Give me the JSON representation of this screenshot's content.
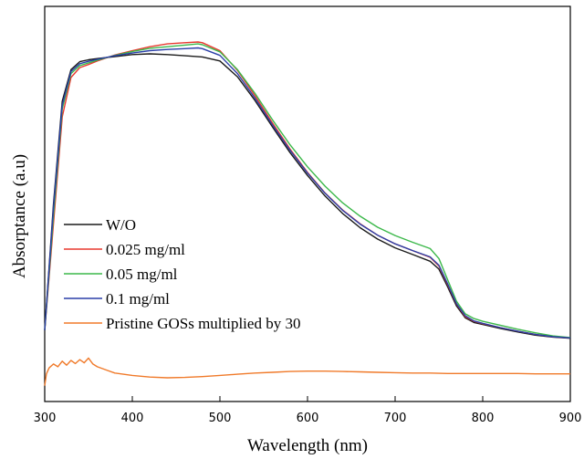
{
  "chart_data": {
    "type": "line",
    "xlabel": "Wavelength (nm)",
    "ylabel": "Absorptance (a.u)",
    "xlim": [
      300,
      900
    ],
    "x_ticks": [
      300,
      400,
      500,
      600,
      700,
      800,
      900
    ],
    "y_tick_labels": false,
    "grid": false,
    "legend_position": "left",
    "series": [
      {
        "name": "W/O",
        "color": "#1a1a1a",
        "points": [
          [
            300,
            0.18
          ],
          [
            310,
            0.5
          ],
          [
            320,
            0.76
          ],
          [
            330,
            0.84
          ],
          [
            340,
            0.86
          ],
          [
            350,
            0.865
          ],
          [
            360,
            0.868
          ],
          [
            380,
            0.873
          ],
          [
            400,
            0.878
          ],
          [
            420,
            0.88
          ],
          [
            440,
            0.878
          ],
          [
            460,
            0.875
          ],
          [
            480,
            0.872
          ],
          [
            500,
            0.862
          ],
          [
            520,
            0.822
          ],
          [
            540,
            0.762
          ],
          [
            560,
            0.695
          ],
          [
            580,
            0.63
          ],
          [
            600,
            0.572
          ],
          [
            620,
            0.52
          ],
          [
            640,
            0.476
          ],
          [
            660,
            0.44
          ],
          [
            680,
            0.411
          ],
          [
            700,
            0.389
          ],
          [
            720,
            0.372
          ],
          [
            740,
            0.355
          ],
          [
            750,
            0.335
          ],
          [
            760,
            0.29
          ],
          [
            770,
            0.242
          ],
          [
            780,
            0.212
          ],
          [
            790,
            0.2
          ],
          [
            800,
            0.195
          ],
          [
            820,
            0.185
          ],
          [
            840,
            0.176
          ],
          [
            860,
            0.168
          ],
          [
            880,
            0.163
          ],
          [
            900,
            0.16
          ]
        ]
      },
      {
        "name": "0.025 mg/ml",
        "color": "#e8382f",
        "points": [
          [
            300,
            0.18
          ],
          [
            310,
            0.45
          ],
          [
            320,
            0.72
          ],
          [
            330,
            0.82
          ],
          [
            340,
            0.845
          ],
          [
            350,
            0.853
          ],
          [
            360,
            0.862
          ],
          [
            380,
            0.877
          ],
          [
            400,
            0.888
          ],
          [
            420,
            0.898
          ],
          [
            440,
            0.905
          ],
          [
            460,
            0.908
          ],
          [
            475,
            0.91
          ],
          [
            480,
            0.908
          ],
          [
            500,
            0.888
          ],
          [
            520,
            0.838
          ],
          [
            540,
            0.774
          ],
          [
            560,
            0.705
          ],
          [
            580,
            0.639
          ],
          [
            600,
            0.58
          ],
          [
            620,
            0.528
          ],
          [
            640,
            0.485
          ],
          [
            660,
            0.45
          ],
          [
            680,
            0.421
          ],
          [
            700,
            0.399
          ],
          [
            720,
            0.382
          ],
          [
            740,
            0.365
          ],
          [
            750,
            0.343
          ],
          [
            760,
            0.296
          ],
          [
            770,
            0.247
          ],
          [
            780,
            0.215
          ],
          [
            790,
            0.203
          ],
          [
            800,
            0.197
          ],
          [
            820,
            0.187
          ],
          [
            840,
            0.178
          ],
          [
            860,
            0.17
          ],
          [
            880,
            0.164
          ],
          [
            900,
            0.161
          ]
        ]
      },
      {
        "name": "0.05 mg/ml",
        "color": "#3cb84a",
        "points": [
          [
            300,
            0.18
          ],
          [
            310,
            0.47
          ],
          [
            320,
            0.74
          ],
          [
            330,
            0.83
          ],
          [
            340,
            0.85
          ],
          [
            350,
            0.857
          ],
          [
            360,
            0.864
          ],
          [
            380,
            0.876
          ],
          [
            400,
            0.886
          ],
          [
            420,
            0.894
          ],
          [
            440,
            0.898
          ],
          [
            460,
            0.902
          ],
          [
            475,
            0.905
          ],
          [
            480,
            0.903
          ],
          [
            500,
            0.885
          ],
          [
            520,
            0.84
          ],
          [
            540,
            0.78
          ],
          [
            560,
            0.713
          ],
          [
            580,
            0.65
          ],
          [
            600,
            0.594
          ],
          [
            620,
            0.545
          ],
          [
            640,
            0.503
          ],
          [
            660,
            0.469
          ],
          [
            680,
            0.441
          ],
          [
            700,
            0.42
          ],
          [
            720,
            0.403
          ],
          [
            740,
            0.387
          ],
          [
            750,
            0.362
          ],
          [
            760,
            0.308
          ],
          [
            770,
            0.254
          ],
          [
            780,
            0.222
          ],
          [
            790,
            0.21
          ],
          [
            800,
            0.203
          ],
          [
            820,
            0.193
          ],
          [
            840,
            0.183
          ],
          [
            860,
            0.174
          ],
          [
            880,
            0.166
          ],
          [
            900,
            0.162
          ]
        ]
      },
      {
        "name": "0.1 mg/ml",
        "color": "#2a3fa8",
        "points": [
          [
            300,
            0.18
          ],
          [
            310,
            0.49
          ],
          [
            320,
            0.75
          ],
          [
            330,
            0.835
          ],
          [
            340,
            0.855
          ],
          [
            350,
            0.861
          ],
          [
            360,
            0.866
          ],
          [
            380,
            0.875
          ],
          [
            400,
            0.882
          ],
          [
            420,
            0.888
          ],
          [
            440,
            0.891
          ],
          [
            460,
            0.893
          ],
          [
            475,
            0.895
          ],
          [
            480,
            0.893
          ],
          [
            500,
            0.876
          ],
          [
            520,
            0.83
          ],
          [
            540,
            0.768
          ],
          [
            560,
            0.7
          ],
          [
            580,
            0.636
          ],
          [
            600,
            0.578
          ],
          [
            620,
            0.527
          ],
          [
            640,
            0.484
          ],
          [
            660,
            0.449
          ],
          [
            680,
            0.421
          ],
          [
            700,
            0.399
          ],
          [
            720,
            0.382
          ],
          [
            740,
            0.366
          ],
          [
            750,
            0.345
          ],
          [
            760,
            0.298
          ],
          [
            770,
            0.248
          ],
          [
            780,
            0.217
          ],
          [
            790,
            0.204
          ],
          [
            800,
            0.198
          ],
          [
            820,
            0.187
          ],
          [
            840,
            0.178
          ],
          [
            860,
            0.17
          ],
          [
            880,
            0.164
          ],
          [
            900,
            0.161
          ]
        ]
      },
      {
        "name": "Pristine GOSs multiplied by 30",
        "color": "#f07a2a",
        "points": [
          [
            300,
            0.04
          ],
          [
            302,
            0.07
          ],
          [
            305,
            0.085
          ],
          [
            310,
            0.095
          ],
          [
            315,
            0.088
          ],
          [
            320,
            0.102
          ],
          [
            325,
            0.092
          ],
          [
            330,
            0.104
          ],
          [
            335,
            0.096
          ],
          [
            340,
            0.106
          ],
          [
            345,
            0.098
          ],
          [
            350,
            0.11
          ],
          [
            355,
            0.095
          ],
          [
            360,
            0.088
          ],
          [
            370,
            0.08
          ],
          [
            380,
            0.072
          ],
          [
            400,
            0.066
          ],
          [
            420,
            0.062
          ],
          [
            440,
            0.06
          ],
          [
            460,
            0.061
          ],
          [
            480,
            0.063
          ],
          [
            500,
            0.066
          ],
          [
            520,
            0.069
          ],
          [
            540,
            0.072
          ],
          [
            560,
            0.074
          ],
          [
            580,
            0.076
          ],
          [
            600,
            0.077
          ],
          [
            620,
            0.077
          ],
          [
            640,
            0.076
          ],
          [
            660,
            0.075
          ],
          [
            680,
            0.074
          ],
          [
            700,
            0.073
          ],
          [
            720,
            0.072
          ],
          [
            740,
            0.072
          ],
          [
            760,
            0.071
          ],
          [
            780,
            0.071
          ],
          [
            800,
            0.071
          ],
          [
            820,
            0.071
          ],
          [
            840,
            0.071
          ],
          [
            860,
            0.07
          ],
          [
            880,
            0.07
          ],
          [
            900,
            0.07
          ]
        ]
      }
    ]
  }
}
